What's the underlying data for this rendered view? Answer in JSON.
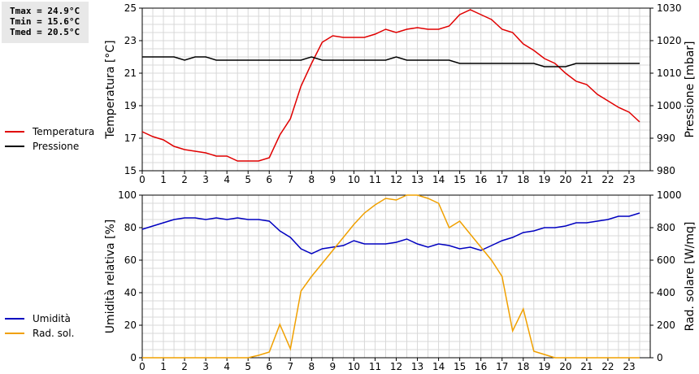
{
  "stats": {
    "tmax": "Tmax = 24.9°C",
    "tmin": "Tmin = 15.6°C",
    "tmed": "Tmed = 20.5°C"
  },
  "legend_top": [
    {
      "label": "Temperatura",
      "color": "#e00000"
    },
    {
      "label": "Pressione",
      "color": "#000000"
    }
  ],
  "legend_bottom": [
    {
      "label": "Umidità",
      "color": "#0000c0"
    },
    {
      "label": "Rad. sol.",
      "color": "#f0a000"
    }
  ],
  "chart_data": [
    {
      "type": "line",
      "x": [
        0,
        0.5,
        1,
        1.5,
        2,
        2.5,
        3,
        3.5,
        4,
        4.5,
        5,
        5.5,
        6,
        6.5,
        7,
        7.5,
        8,
        8.5,
        9,
        9.5,
        10,
        10.5,
        11,
        11.5,
        12,
        12.5,
        13,
        13.5,
        14,
        14.5,
        15,
        15.5,
        16,
        16.5,
        17,
        17.5,
        18,
        18.5,
        19,
        19.5,
        20,
        20.5,
        21,
        21.5,
        22,
        22.5,
        23,
        23.5
      ],
      "xlim": [
        0,
        24
      ],
      "xticks": [
        "0",
        "1",
        "2",
        "3",
        "4",
        "5",
        "6",
        "7",
        "8",
        "9",
        "10",
        "11",
        "12",
        "13",
        "14",
        "15",
        "16",
        "17",
        "18",
        "19",
        "20",
        "21",
        "22",
        "23"
      ],
      "ylabel": "Temperatura [°C]",
      "ylim": [
        15,
        25
      ],
      "yticks": [
        "15",
        "17",
        "19",
        "21",
        "23",
        "25"
      ],
      "y2label": "Pressione [mbar]",
      "y2lim": [
        980,
        1030
      ],
      "y2ticks": [
        "980",
        "990",
        "1000",
        "1010",
        "1020",
        "1030"
      ],
      "grid": true,
      "series": [
        {
          "name": "Temperatura",
          "axis": "left",
          "color": "#e00000",
          "values": [
            17.4,
            17.1,
            16.9,
            16.5,
            16.3,
            16.2,
            16.1,
            15.9,
            15.9,
            15.6,
            15.6,
            15.6,
            15.8,
            17.2,
            18.2,
            20.2,
            21.6,
            22.9,
            23.3,
            23.2,
            23.2,
            23.2,
            23.4,
            23.7,
            23.5,
            23.7,
            23.8,
            23.7,
            23.7,
            23.9,
            24.6,
            24.9,
            24.6,
            24.3,
            23.7,
            23.5,
            22.8,
            22.4,
            21.9,
            21.6,
            21.0,
            20.5,
            20.3,
            19.7,
            19.3,
            18.9,
            18.6,
            18.0
          ]
        },
        {
          "name": "Pressione",
          "axis": "right",
          "color": "#000000",
          "values": [
            1015,
            1015,
            1015,
            1015,
            1014,
            1015,
            1015,
            1014,
            1014,
            1014,
            1014,
            1014,
            1014,
            1014,
            1014,
            1014,
            1015,
            1014,
            1014,
            1014,
            1014,
            1014,
            1014,
            1014,
            1015,
            1014,
            1014,
            1014,
            1014,
            1014,
            1013,
            1013,
            1013,
            1013,
            1013,
            1013,
            1013,
            1013,
            1012,
            1012,
            1012,
            1013,
            1013,
            1013,
            1013,
            1013,
            1013,
            1013
          ]
        }
      ]
    },
    {
      "type": "line",
      "x": [
        0,
        0.5,
        1,
        1.5,
        2,
        2.5,
        3,
        3.5,
        4,
        4.5,
        5,
        5.5,
        6,
        6.5,
        7,
        7.5,
        8,
        8.5,
        9,
        9.5,
        10,
        10.5,
        11,
        11.5,
        12,
        12.5,
        13,
        13.5,
        14,
        14.5,
        15,
        15.5,
        16,
        16.5,
        17,
        17.5,
        18,
        18.5,
        19,
        19.5,
        20,
        20.5,
        21,
        21.5,
        22,
        22.5,
        23,
        23.5
      ],
      "xlim": [
        0,
        24
      ],
      "xticks": [
        "0",
        "1",
        "2",
        "3",
        "4",
        "5",
        "6",
        "7",
        "8",
        "9",
        "10",
        "11",
        "12",
        "13",
        "14",
        "15",
        "16",
        "17",
        "18",
        "19",
        "20",
        "21",
        "22",
        "23"
      ],
      "ylabel": "Umidità relativa [%]",
      "ylim": [
        0,
        100
      ],
      "yticks": [
        "0",
        "20",
        "40",
        "60",
        "80",
        "100"
      ],
      "y2label": "Rad. solare [W/mq]",
      "y2lim": [
        0,
        1000
      ],
      "y2ticks": [
        "0",
        "200",
        "400",
        "600",
        "800",
        "1000"
      ],
      "grid": true,
      "series": [
        {
          "name": "Umidità",
          "axis": "left",
          "color": "#0000c0",
          "values": [
            79,
            81,
            83,
            85,
            86,
            86,
            85,
            86,
            85,
            86,
            85,
            85,
            84,
            78,
            74,
            67,
            64,
            67,
            68,
            69,
            72,
            70,
            70,
            70,
            71,
            73,
            70,
            68,
            70,
            69,
            67,
            68,
            66,
            69,
            72,
            74,
            77,
            78,
            80,
            80,
            81,
            83,
            83,
            84,
            85,
            87,
            87,
            89
          ]
        },
        {
          "name": "Rad. sol.",
          "axis": "right",
          "color": "#f0a000",
          "values": [
            0,
            0,
            0,
            0,
            0,
            0,
            0,
            0,
            0,
            0,
            0,
            15,
            35,
            205,
            55,
            410,
            500,
            580,
            660,
            740,
            820,
            890,
            940,
            980,
            970,
            1000,
            1000,
            980,
            950,
            800,
            840,
            760,
            680,
            600,
            500,
            165,
            300,
            40,
            20,
            0,
            0,
            0,
            0,
            0,
            0,
            0,
            0,
            0
          ]
        }
      ]
    }
  ]
}
